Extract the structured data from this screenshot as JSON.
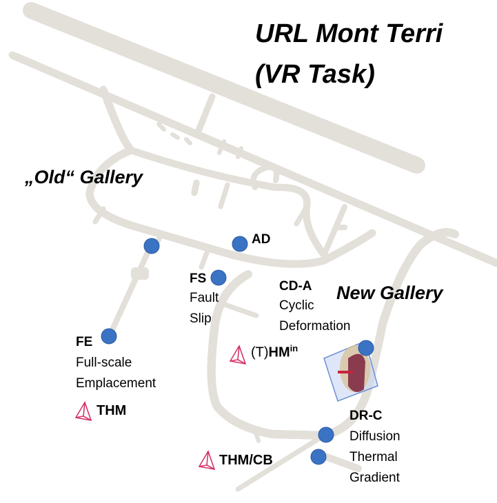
{
  "title": {
    "line1": "URL Mont Terri",
    "line2": "(VR Task)"
  },
  "galleries": {
    "old": "„Old“ Gallery",
    "new": "New Gallery"
  },
  "experiments": {
    "ad": {
      "code": "AD"
    },
    "fs": {
      "code": "FS",
      "desc1": "Fault",
      "desc2": "Slip"
    },
    "cda": {
      "code": "CD-A",
      "desc1": "Cyclic",
      "desc2": "Deformation"
    },
    "fe": {
      "code": "FE",
      "desc1": "Full-scale",
      "desc2": "Emplacement"
    },
    "drc": {
      "code": "DR-C",
      "desc1": "Diffusion",
      "desc2": "Thermal",
      "desc3": "Gradient"
    }
  },
  "models": {
    "thm_hm": {
      "prefix": "(T)",
      "main": "HM",
      "sup": "in"
    },
    "thm_fe": "THM",
    "thm_cb": "THM/CB"
  },
  "colors": {
    "tunnel": "#e3e0da",
    "tunnel_edge": "#bdb9b1",
    "dot": "#3b73c4",
    "pyramid": "#d6336c"
  },
  "icons": {
    "pyramid": "tetrahedron-model-icon",
    "marker": "experiment-location-dot"
  }
}
